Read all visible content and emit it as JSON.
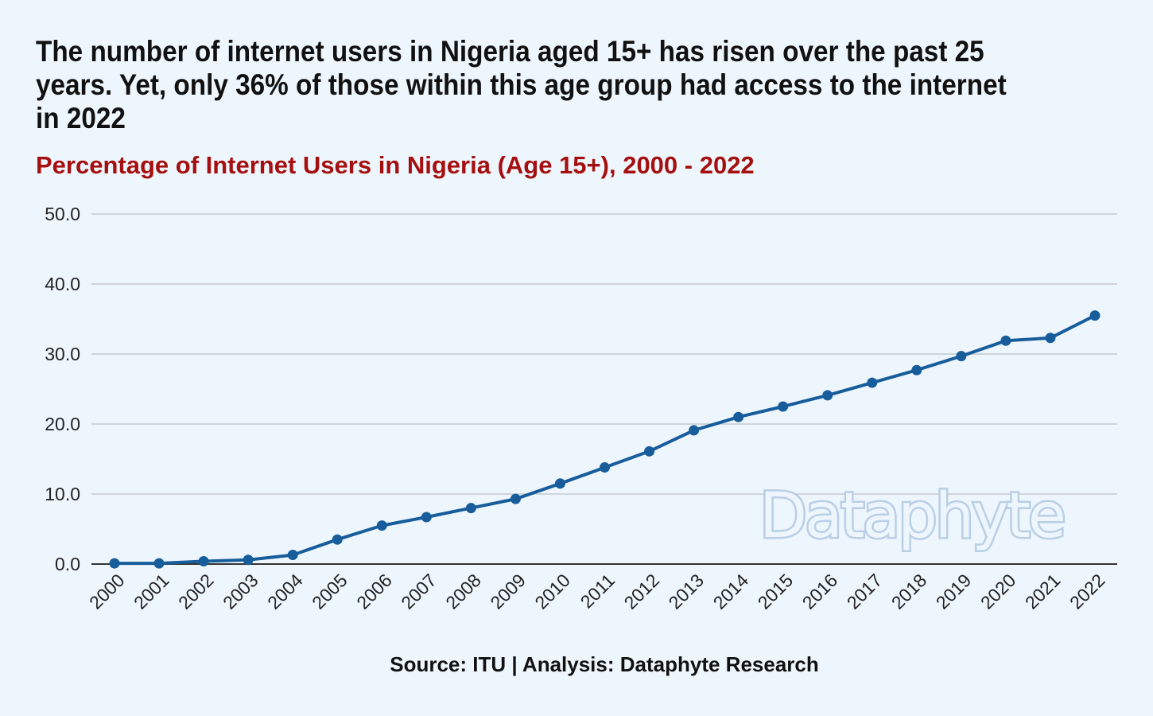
{
  "headline": "The number of internet users in Nigeria aged 15+ has risen over the past 25 years. Yet, only 36% of those within this age group had access to the internet in 2022",
  "source": "Source: ITU | Analysis: Dataphyte Research",
  "watermark": "Dataphyte",
  "colors": {
    "background": "#eef6fd",
    "headline": "#111111",
    "subtitle": "#a50f0f",
    "series": "#175d9b",
    "watermark_outline": "#b9cfe6"
  },
  "chart_data": {
    "type": "line",
    "title": "Percentage of Internet Users in Nigeria (Age 15+), 2000 - 2022",
    "xlabel": "",
    "ylabel": "",
    "categories": [
      "2000",
      "2001",
      "2002",
      "2003",
      "2004",
      "2005",
      "2006",
      "2007",
      "2008",
      "2009",
      "2010",
      "2011",
      "2012",
      "2013",
      "2014",
      "2015",
      "2016",
      "2017",
      "2018",
      "2019",
      "2020",
      "2021",
      "2022"
    ],
    "series": [
      {
        "values": [
          0.1,
          0.1,
          0.4,
          0.6,
          1.3,
          3.5,
          5.5,
          6.7,
          8.0,
          9.3,
          11.5,
          13.8,
          16.1,
          19.1,
          21.0,
          22.5,
          24.1,
          25.9,
          27.7,
          29.7,
          31.9,
          32.3,
          35.5
        ]
      }
    ],
    "ylim": [
      0,
      50
    ],
    "yticks": [
      "0.0",
      "10.0",
      "20.0",
      "30.0",
      "40.0",
      "50.0"
    ],
    "grid": true,
    "legend": "none"
  }
}
